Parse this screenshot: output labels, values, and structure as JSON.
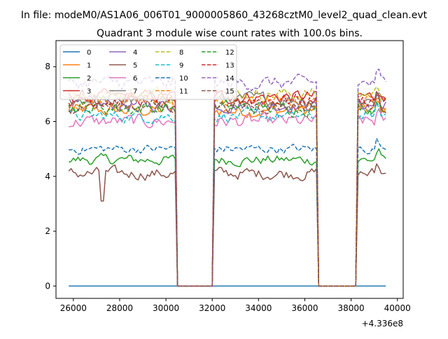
{
  "suptitle": "In file: modeM0/AS1A06_006T01_9000005860_43268cztM0_level2_quad_clean.evt",
  "chart_data": {
    "type": "line",
    "title": "Quadrant 3 module wise count rates with 100.0s bins.",
    "xlabel": "",
    "ylabel": "",
    "x_offset_label": "+4.336e8",
    "xlim": [
      25250,
      40250
    ],
    "ylim": [
      -0.45,
      8.95
    ],
    "xticks": [
      26000,
      28000,
      30000,
      32000,
      34000,
      36000,
      38000,
      40000
    ],
    "yticks": [
      0,
      2,
      4,
      6,
      8
    ],
    "grid": false,
    "legend_position": "top-left",
    "legend_columns": 4,
    "segments": [
      [
        25800,
        30400
      ],
      [
        32100,
        36550
      ],
      [
        38300,
        39500
      ]
    ],
    "gaps": [
      [
        30450,
        32050
      ],
      [
        36600,
        38250
      ]
    ],
    "series": [
      {
        "name": "0",
        "color": "#1f77b4",
        "dash": "solid",
        "level": 0.0,
        "noise": 0.0
      },
      {
        "name": "1",
        "color": "#ff7f0e",
        "dash": "solid",
        "level": 6.4,
        "noise": 0.45
      },
      {
        "name": "2",
        "color": "#2ca02c",
        "dash": "solid",
        "level": 4.6,
        "noise": 0.35
      },
      {
        "name": "3",
        "color": "#d62728",
        "dash": "solid",
        "level": 6.9,
        "noise": 0.45
      },
      {
        "name": "4",
        "color": "#9467bd",
        "dash": "solid",
        "level": 6.6,
        "noise": 0.45
      },
      {
        "name": "5",
        "color": "#8c564b",
        "dash": "solid",
        "level": 4.1,
        "noise": 0.4
      },
      {
        "name": "6",
        "color": "#e377c2",
        "dash": "solid",
        "level": 6.0,
        "noise": 0.45
      },
      {
        "name": "7",
        "color": "#7f7f7f",
        "dash": "solid",
        "level": 6.8,
        "noise": 0.45
      },
      {
        "name": "8",
        "color": "#bcbd22",
        "dash": "dashed",
        "level": 7.0,
        "noise": 0.45
      },
      {
        "name": "9",
        "color": "#17becf",
        "dash": "dashed",
        "level": 6.2,
        "noise": 0.4
      },
      {
        "name": "10",
        "color": "#1f77b4",
        "dash": "dashed",
        "level": 5.0,
        "noise": 0.3
      },
      {
        "name": "11",
        "color": "#ff7f0e",
        "dash": "dashed",
        "level": 6.7,
        "noise": 0.45
      },
      {
        "name": "12",
        "color": "#2ca02c",
        "dash": "dashed",
        "level": 6.5,
        "noise": 0.45
      },
      {
        "name": "13",
        "color": "#d62728",
        "dash": "dashed",
        "level": 6.8,
        "noise": 0.45
      },
      {
        "name": "14",
        "color": "#9467bd",
        "dash": "dashed",
        "level": 7.4,
        "noise": 0.45
      },
      {
        "name": "15",
        "color": "#8c564b",
        "dash": "dashed",
        "level": 6.6,
        "noise": 0.45
      }
    ]
  }
}
